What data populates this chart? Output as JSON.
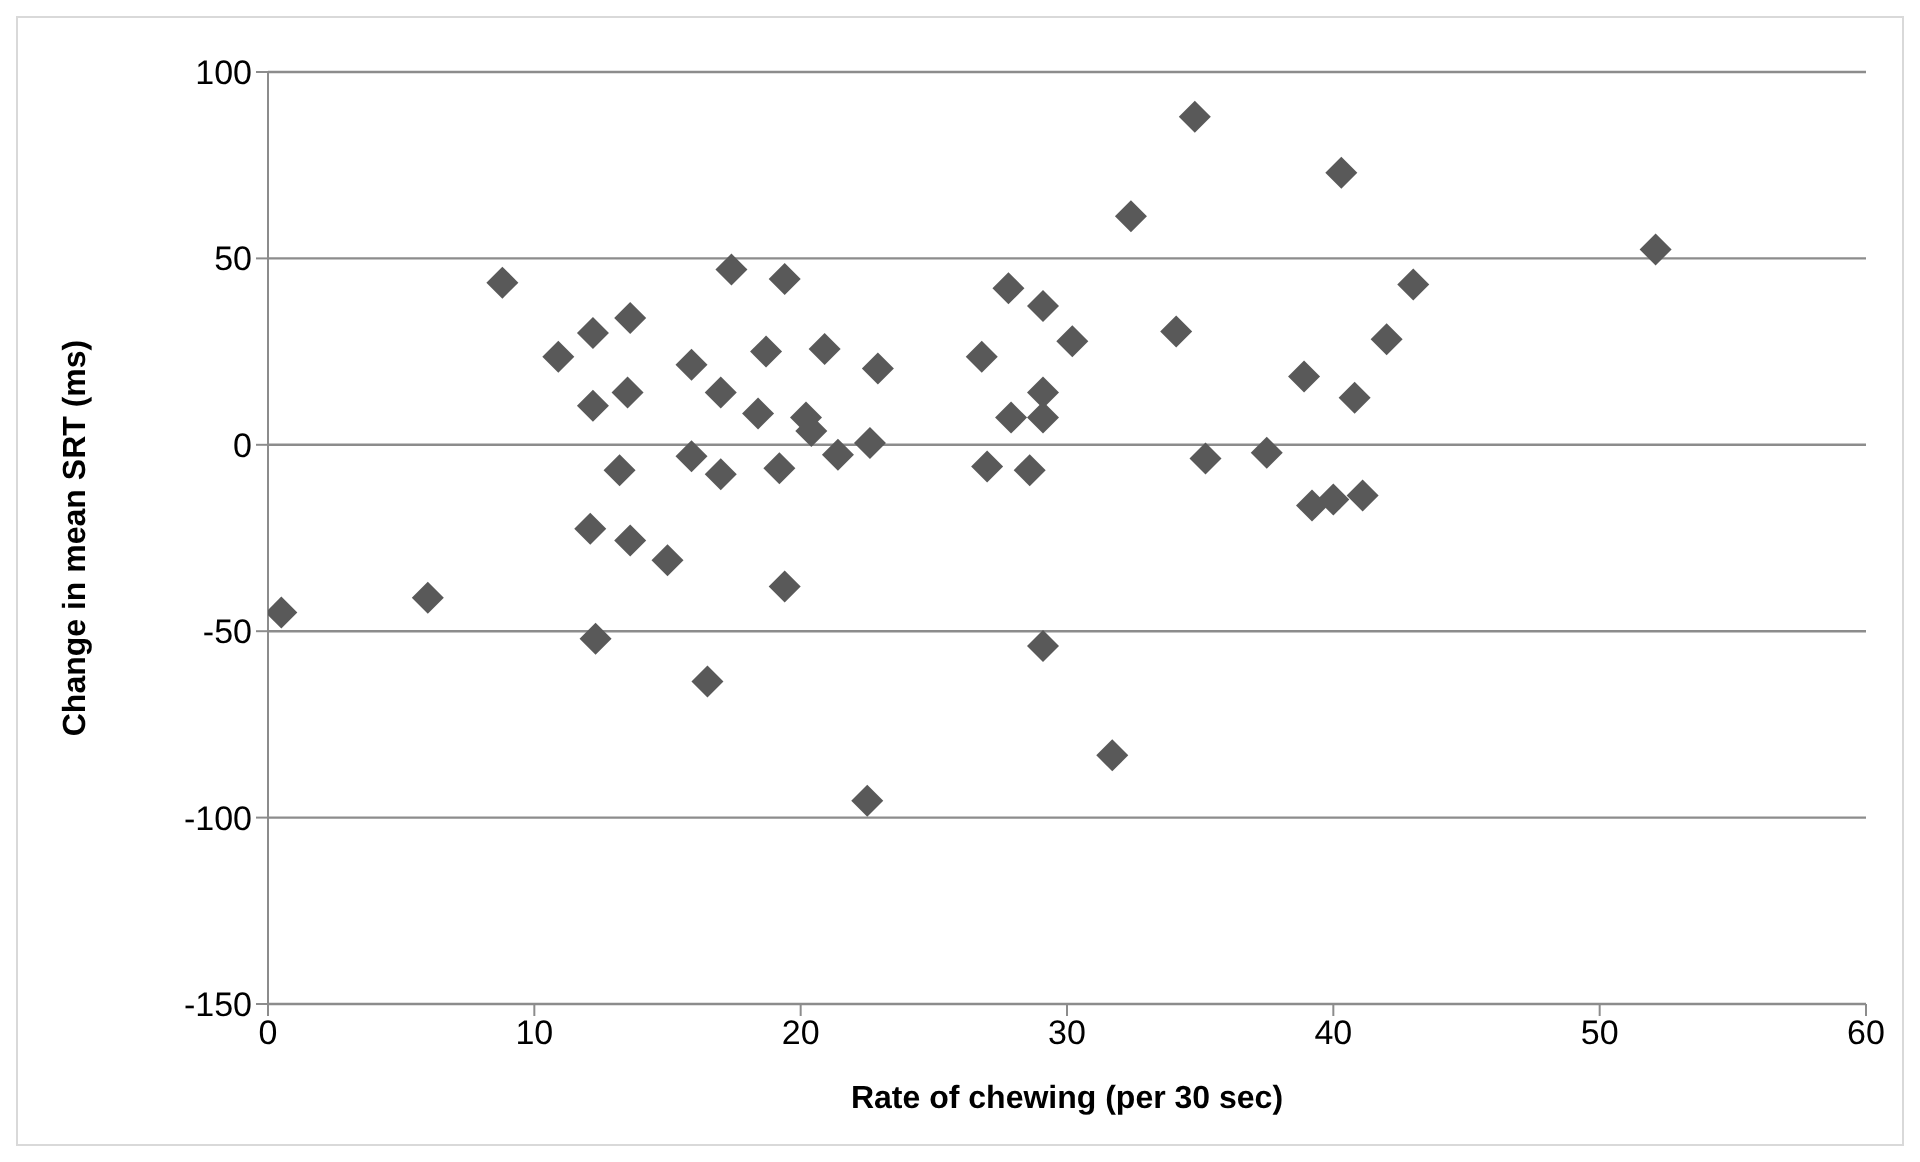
{
  "chart_data": {
    "type": "scatter",
    "xlabel": "Rate of chewing (per 30 sec)",
    "ylabel": "Change in mean SRT (ms)",
    "x": [
      0.5,
      6,
      8.8,
      10.9,
      12.2,
      12.2,
      13.6,
      13.5,
      13.2,
      12.1,
      12.3,
      13.6,
      15,
      15.9,
      17,
      15.9,
      17,
      17.4,
      19.4,
      18.7,
      18.4,
      19.2,
      20.9,
      20.2,
      20.4,
      19.4,
      16.5,
      21.4,
      22.6,
      22.9,
      22.5,
      26.8,
      27,
      27.8,
      27.9,
      28.6,
      29.1,
      29.1,
      29.1,
      30.2,
      29.1,
      31.7,
      32.4,
      34.1,
      34.8,
      35.2,
      37.5,
      38.9,
      39.2,
      40,
      41.1,
      40.3,
      40.8,
      42,
      43,
      52.1
    ],
    "series": [
      {
        "color": "#595959",
        "values": [
          -45,
          -41,
          43.5,
          23.6,
          30,
          10.5,
          34,
          14,
          -6.8,
          -22.5,
          -52,
          -25.7,
          -31,
          -3.1,
          -7.9,
          21.5,
          14,
          47,
          44.5,
          25,
          8.4,
          -6.3,
          25.7,
          7.3,
          3.7,
          -38,
          -63.5,
          -2.7,
          0.5,
          20.5,
          -95.5,
          23.6,
          -5.8,
          42,
          7.3,
          -6.8,
          37.2,
          14,
          7.3,
          27.8,
          -54,
          -83.3,
          61.3,
          30.4,
          88,
          -3.7,
          -2.1,
          18.3,
          -16.3,
          -14.7,
          -13.6,
          73,
          12.6,
          28.3,
          43,
          52.4
        ]
      }
    ],
    "marker": "diamond",
    "xlim": [
      0,
      60
    ],
    "xticks": [
      0,
      10,
      20,
      30,
      40,
      50,
      60
    ],
    "ylim": [
      -150,
      100
    ],
    "yticks": [
      -150,
      -100,
      -50,
      0,
      50,
      100
    ],
    "grid": "y"
  }
}
